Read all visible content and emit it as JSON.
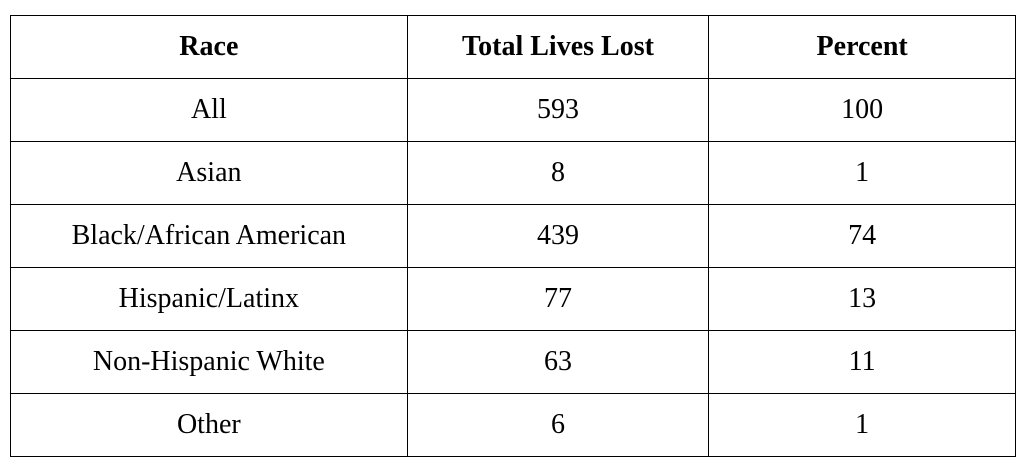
{
  "table": {
    "columns": [
      "Race",
      "Total Lives Lost",
      "Percent"
    ],
    "rows": [
      [
        "All",
        593,
        100
      ],
      [
        "Asian",
        8,
        1
      ],
      [
        "Black/African American",
        439,
        74
      ],
      [
        "Hispanic/Latinx",
        77,
        13
      ],
      [
        "Non-Hispanic White",
        63,
        11
      ],
      [
        "Other",
        6,
        1
      ]
    ]
  }
}
